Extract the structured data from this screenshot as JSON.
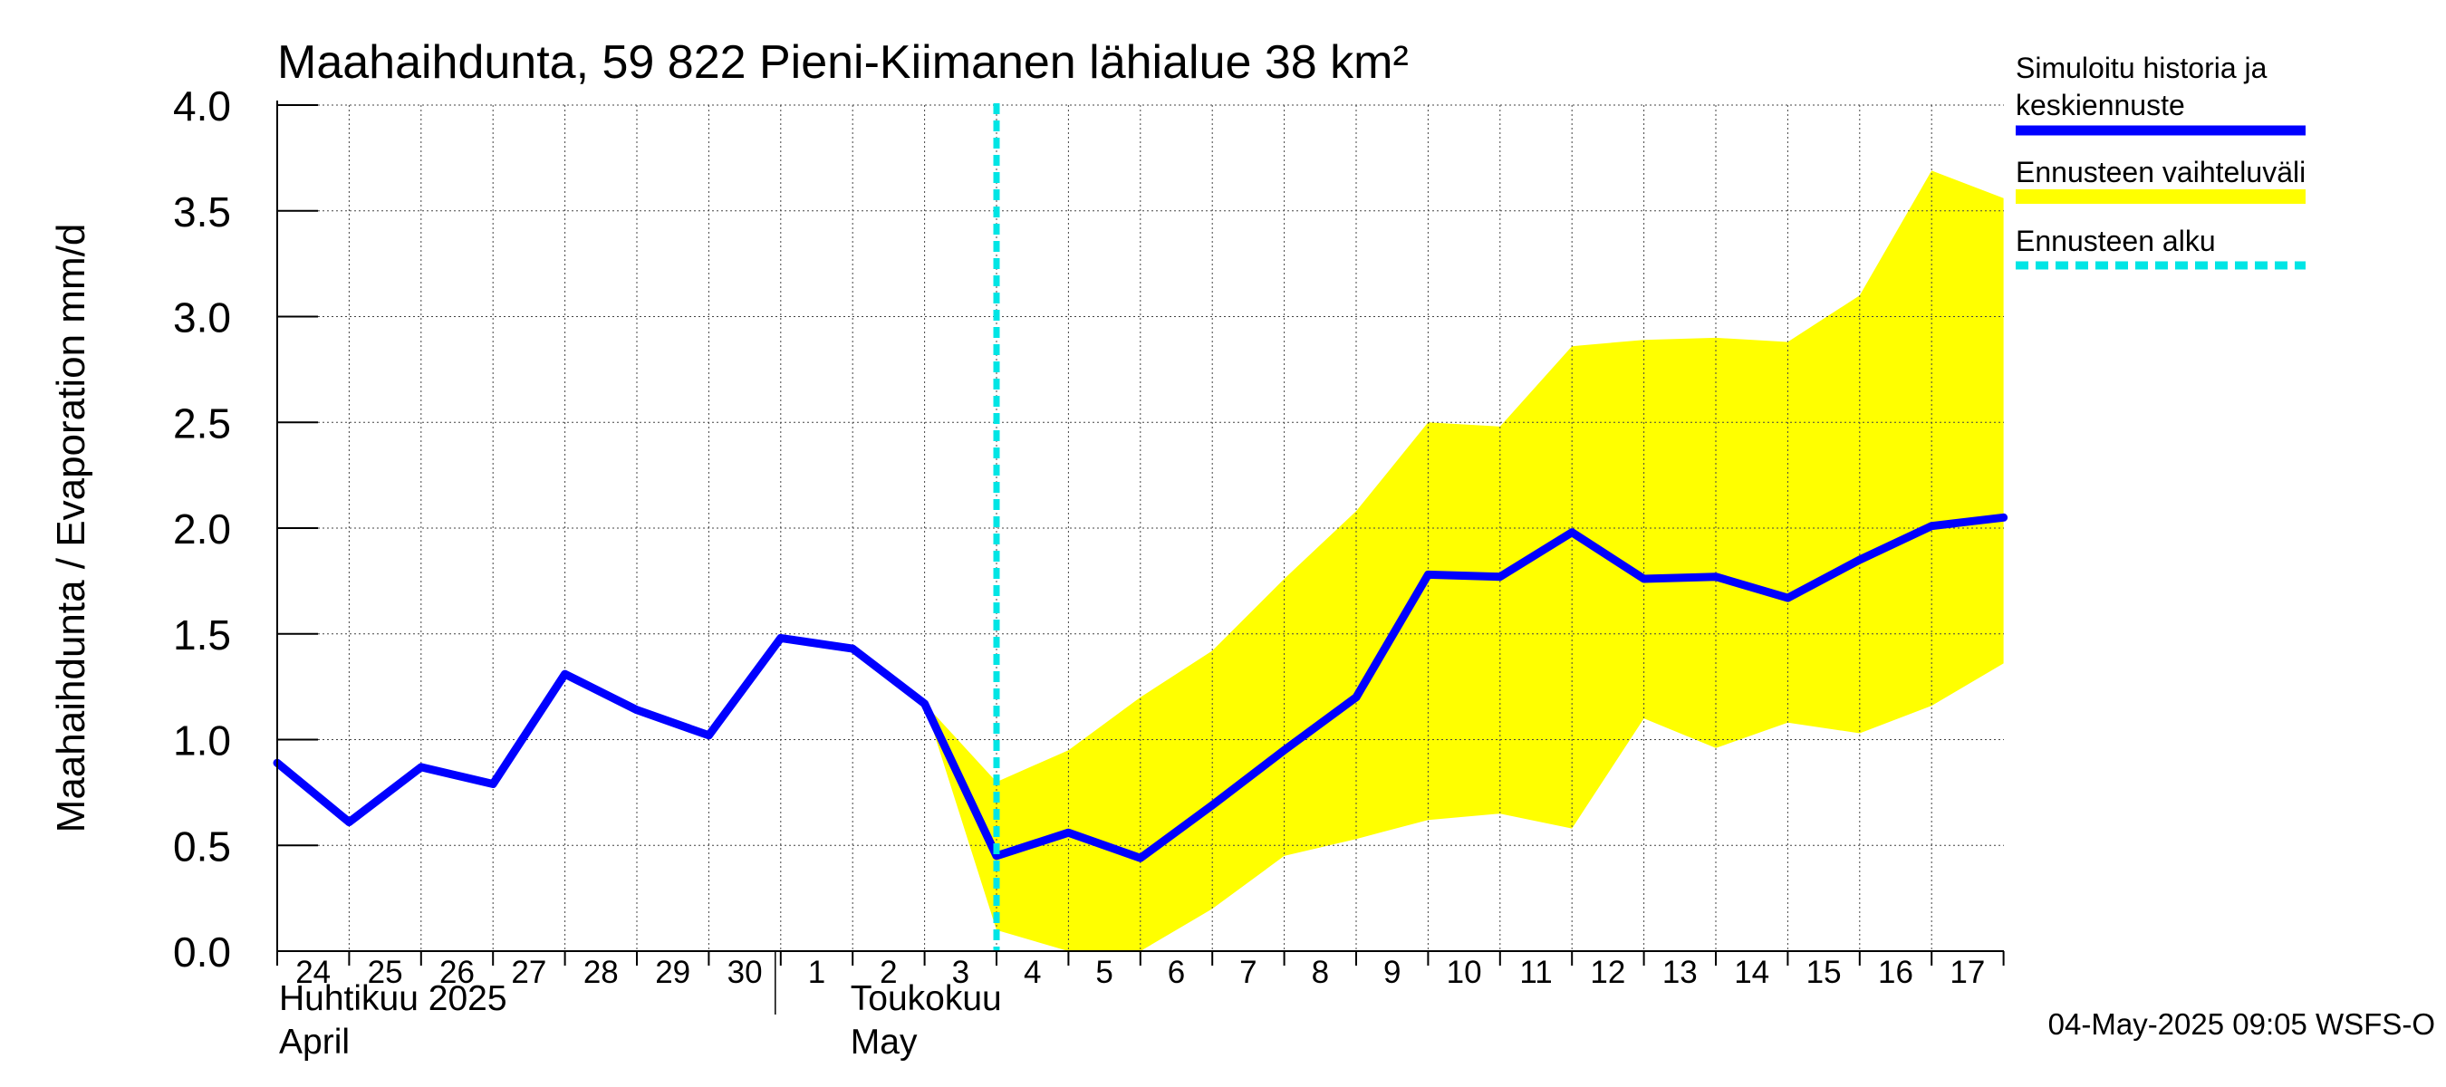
{
  "chart_data": {
    "type": "line",
    "title": "Maahaihdunta, 59 822 Pieni-Kiimanen lähialue 38 km²",
    "ylabel": "Maahaihdunta / Evaporation   mm/d",
    "ylim": [
      0.0,
      4.0
    ],
    "yticks": [
      "0.0",
      "0.5",
      "1.0",
      "1.5",
      "2.0",
      "2.5",
      "3.0",
      "3.5",
      "4.0"
    ],
    "x": [
      "2025-04-24",
      "2025-04-25",
      "2025-04-26",
      "2025-04-27",
      "2025-04-28",
      "2025-04-29",
      "2025-04-30",
      "2025-05-01",
      "2025-05-02",
      "2025-05-03",
      "2025-05-04",
      "2025-05-05",
      "2025-05-06",
      "2025-05-07",
      "2025-05-08",
      "2025-05-09",
      "2025-05-10",
      "2025-05-11",
      "2025-05-12",
      "2025-05-13",
      "2025-05-14",
      "2025-05-15",
      "2025-05-16",
      "2025-05-17",
      "2025-05-18"
    ],
    "xtick_labels": [
      "24",
      "25",
      "26",
      "27",
      "28",
      "29",
      "30",
      "1",
      "2",
      "3",
      "4",
      "5",
      "6",
      "7",
      "8",
      "9",
      "10",
      "11",
      "12",
      "13",
      "14",
      "15",
      "16",
      "17"
    ],
    "month_labels": [
      {
        "top": "Huhtikuu  2025",
        "bottom": "April"
      },
      {
        "top": "Toukokuu",
        "bottom": "May"
      }
    ],
    "series": [
      {
        "name": "Simuloitu historia ja keskiennuste",
        "color": "#0000ff",
        "values": [
          0.89,
          0.61,
          0.87,
          0.79,
          1.31,
          1.14,
          1.02,
          1.48,
          1.43,
          1.17,
          0.45,
          0.56,
          0.44,
          0.69,
          0.95,
          1.2,
          1.78,
          1.77,
          1.98,
          1.76,
          1.77,
          1.67,
          1.85,
          2.01,
          2.05
        ]
      }
    ],
    "band": {
      "name": "Ennusteen vaihteluväli",
      "color": "#ffff00",
      "upper": [
        1.17,
        0.8,
        0.95,
        1.2,
        1.42,
        1.76,
        2.08,
        2.5,
        2.48,
        2.86,
        2.89,
        2.9,
        2.88,
        3.1,
        3.69,
        3.56
      ],
      "lower": [
        1.17,
        0.1,
        0.0,
        0.0,
        0.2,
        0.45,
        0.53,
        0.62,
        0.65,
        0.58,
        1.1,
        0.96,
        1.08,
        1.03,
        1.16,
        1.36
      ]
    },
    "forecast_start": {
      "name": "Ennusteen alku",
      "color": "#00e5e5",
      "x": "2025-05-04"
    },
    "grid": true,
    "legend": {
      "placement": "right",
      "items": [
        {
          "label_lines": [
            "Simuloitu historia ja",
            "keskiennuste"
          ],
          "color": "#0000ff",
          "style": "solid"
        },
        {
          "label_lines": [
            "Ennusteen vaihteluväli"
          ],
          "color": "#ffff00",
          "style": "solid"
        },
        {
          "label_lines": [
            "Ennusteen alku"
          ],
          "color": "#00e5e5",
          "style": "dashed"
        }
      ]
    },
    "timestamp": "04-May-2025 09:05 WSFS-O"
  }
}
